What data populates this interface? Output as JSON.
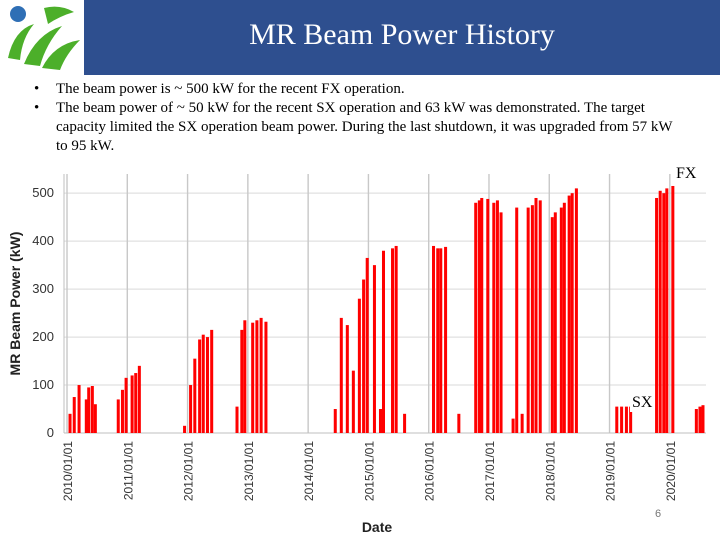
{
  "slide": {
    "title": "MR Beam Power History",
    "bullets": [
      "The beam power is ~ 500 kW for the recent FX operation.",
      "The beam power of ~ 50 kW for the recent SX operation and 63 kW was demonstrated. The target capacity limited the SX operation beam power. During the last shutdown, it was upgraded from 57 kW to 95 kW."
    ],
    "fx_label": "FX",
    "sx_label": "SX",
    "page_number": "6",
    "logo_icon": "institution-logo-icon"
  },
  "chart_data": {
    "type": "bar",
    "title": "",
    "xlabel": "Date",
    "ylabel": "MR Beam Power (kW)",
    "ylim": [
      0,
      540
    ],
    "yticks": [
      0,
      100,
      200,
      300,
      400,
      500
    ],
    "xlim": [
      2009.95,
      2020.6
    ],
    "xticks": [
      "2010/01/01",
      "2011/01/01",
      "2012/01/01",
      "2013/01/01",
      "2014/01/01",
      "2015/01/01",
      "2016/01/01",
      "2017/01/01",
      "2018/01/01",
      "2019/01/01",
      "2020/01/01"
    ],
    "grid": true,
    "color": "#ff0000",
    "series": [
      {
        "name": "MR beam power",
        "points": [
          [
            2010.05,
            40
          ],
          [
            2010.12,
            75
          ],
          [
            2010.2,
            100
          ],
          [
            2010.32,
            70
          ],
          [
            2010.36,
            95
          ],
          [
            2010.42,
            98
          ],
          [
            2010.47,
            60
          ],
          [
            2010.85,
            70
          ],
          [
            2010.92,
            90
          ],
          [
            2010.98,
            115
          ],
          [
            2011.08,
            120
          ],
          [
            2011.14,
            125
          ],
          [
            2011.2,
            140
          ],
          [
            2011.95,
            15
          ],
          [
            2012.05,
            100
          ],
          [
            2012.12,
            155
          ],
          [
            2012.2,
            195
          ],
          [
            2012.26,
            205
          ],
          [
            2012.33,
            200
          ],
          [
            2012.4,
            215
          ],
          [
            2012.82,
            55
          ],
          [
            2012.9,
            215
          ],
          [
            2012.95,
            235
          ],
          [
            2013.08,
            230
          ],
          [
            2013.15,
            235
          ],
          [
            2013.22,
            240
          ],
          [
            2013.3,
            232
          ],
          [
            2014.45,
            50
          ],
          [
            2014.55,
            240
          ],
          [
            2014.65,
            225
          ],
          [
            2014.75,
            130
          ],
          [
            2014.85,
            280
          ],
          [
            2014.92,
            320
          ],
          [
            2014.98,
            365
          ],
          [
            2015.1,
            350
          ],
          [
            2015.2,
            50
          ],
          [
            2015.25,
            380
          ],
          [
            2015.4,
            385
          ],
          [
            2015.46,
            390
          ],
          [
            2015.6,
            40
          ],
          [
            2016.08,
            390
          ],
          [
            2016.15,
            385
          ],
          [
            2016.2,
            385
          ],
          [
            2016.28,
            388
          ],
          [
            2016.5,
            40
          ],
          [
            2016.78,
            480
          ],
          [
            2016.84,
            485
          ],
          [
            2016.88,
            490
          ],
          [
            2016.98,
            488
          ],
          [
            2017.08,
            480
          ],
          [
            2017.14,
            485
          ],
          [
            2017.2,
            460
          ],
          [
            2017.4,
            30
          ],
          [
            2017.46,
            470
          ],
          [
            2017.55,
            40
          ],
          [
            2017.65,
            470
          ],
          [
            2017.72,
            475
          ],
          [
            2017.78,
            490
          ],
          [
            2017.85,
            485
          ],
          [
            2018.05,
            450
          ],
          [
            2018.1,
            460
          ],
          [
            2018.2,
            470
          ],
          [
            2018.25,
            480
          ],
          [
            2018.33,
            495
          ],
          [
            2018.38,
            500
          ],
          [
            2018.45,
            510
          ],
          [
            2019.12,
            55
          ],
          [
            2019.2,
            55
          ],
          [
            2019.28,
            55
          ],
          [
            2019.35,
            55
          ],
          [
            2019.78,
            490
          ],
          [
            2019.84,
            505
          ],
          [
            2019.9,
            500
          ],
          [
            2019.95,
            510
          ],
          [
            2020.05,
            515
          ],
          [
            2020.44,
            50
          ],
          [
            2020.5,
            55
          ],
          [
            2020.55,
            58
          ]
        ]
      }
    ]
  }
}
